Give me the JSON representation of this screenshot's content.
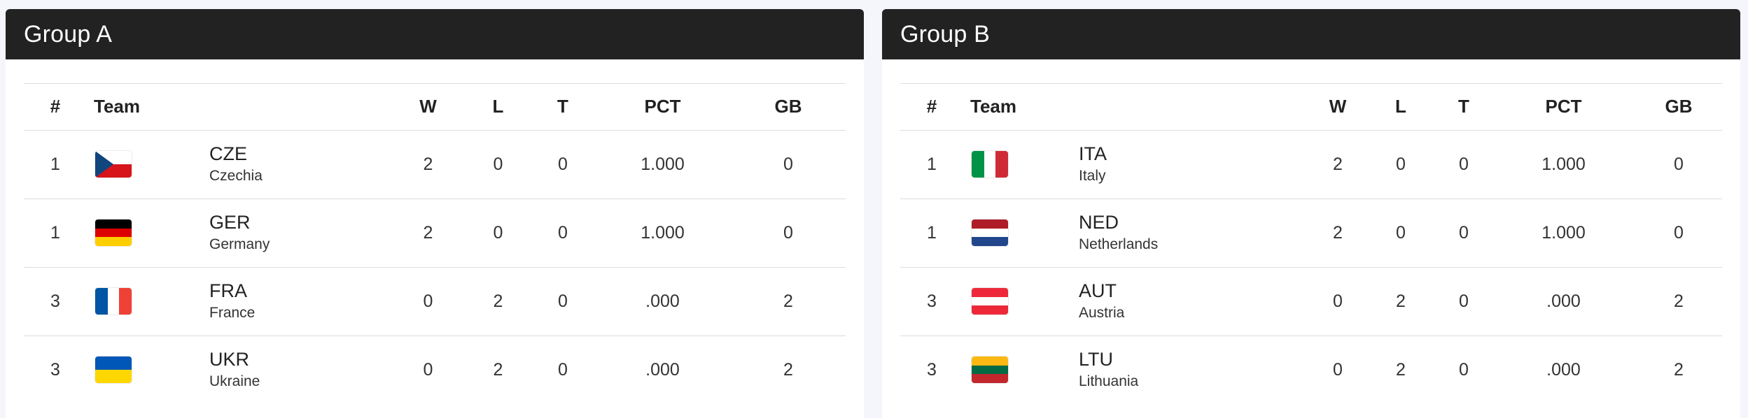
{
  "columns": {
    "rank": "#",
    "team": "Team",
    "w": "W",
    "l": "L",
    "t": "T",
    "pct": "PCT",
    "gb": "GB"
  },
  "groups": [
    {
      "title": "Group A",
      "rows": [
        {
          "rank": "1",
          "code": "CZE",
          "country": "Czechia",
          "flag": "czech-flag-icon",
          "w": "2",
          "l": "0",
          "t": "0",
          "pct": "1.000",
          "gb": "0"
        },
        {
          "rank": "1",
          "code": "GER",
          "country": "Germany",
          "flag": "german-flag-icon",
          "w": "2",
          "l": "0",
          "t": "0",
          "pct": "1.000",
          "gb": "0"
        },
        {
          "rank": "3",
          "code": "FRA",
          "country": "France",
          "flag": "french-flag-icon",
          "w": "0",
          "l": "2",
          "t": "0",
          "pct": ".000",
          "gb": "2"
        },
        {
          "rank": "3",
          "code": "UKR",
          "country": "Ukraine",
          "flag": "ukrainian-flag-icon",
          "w": "0",
          "l": "2",
          "t": "0",
          "pct": ".000",
          "gb": "2"
        }
      ]
    },
    {
      "title": "Group B",
      "rows": [
        {
          "rank": "1",
          "code": "ITA",
          "country": "Italy",
          "flag": "italian-flag-icon",
          "w": "2",
          "l": "0",
          "t": "0",
          "pct": "1.000",
          "gb": "0"
        },
        {
          "rank": "1",
          "code": "NED",
          "country": "Netherlands",
          "flag": "dutch-flag-icon",
          "w": "2",
          "l": "0",
          "t": "0",
          "pct": "1.000",
          "gb": "0"
        },
        {
          "rank": "3",
          "code": "AUT",
          "country": "Austria",
          "flag": "austrian-flag-icon",
          "w": "0",
          "l": "2",
          "t": "0",
          "pct": ".000",
          "gb": "2"
        },
        {
          "rank": "3",
          "code": "LTU",
          "country": "Lithuania",
          "flag": "lithuanian-flag-icon",
          "w": "0",
          "l": "2",
          "t": "0",
          "pct": ".000",
          "gb": "2"
        }
      ]
    }
  ],
  "colors": {
    "header_bg": "#222222",
    "header_text": "#ffffff",
    "page_bg": "#f5f6fb",
    "divider": "#dcdcdc"
  }
}
